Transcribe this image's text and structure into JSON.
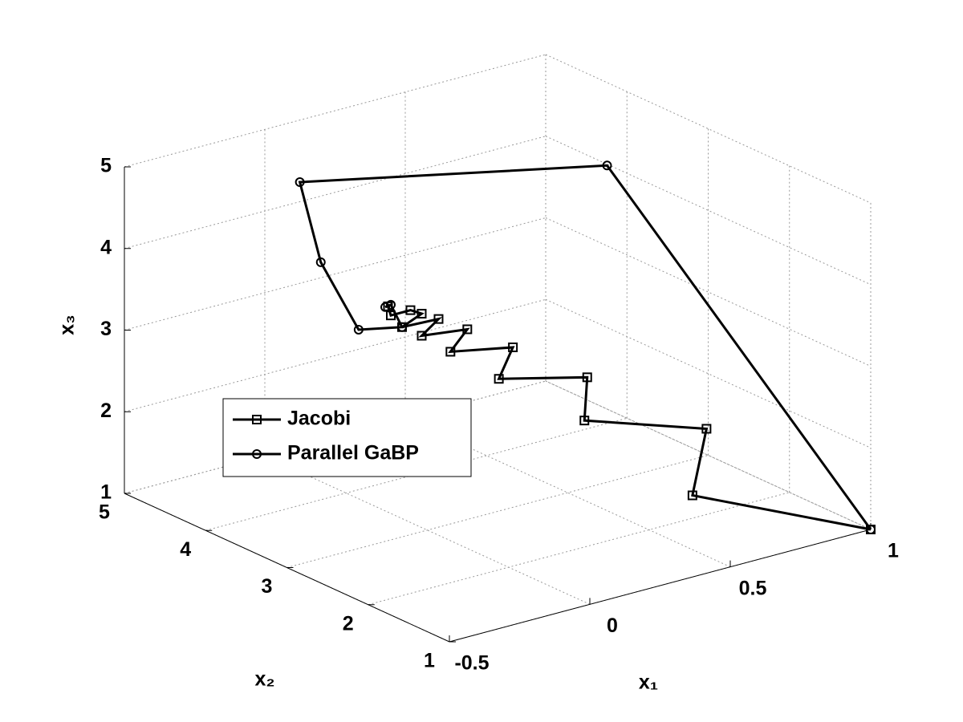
{
  "chart_data": {
    "type": "line3d",
    "xlabel": "x₁",
    "ylabel": "x₂",
    "zlabel": "x₃",
    "xlim": [
      -0.5,
      1
    ],
    "ylim": [
      1,
      5
    ],
    "zlim": [
      1,
      5
    ],
    "xticks": [
      -0.5,
      0,
      0.5,
      1
    ],
    "yticks": [
      1,
      2,
      3,
      4,
      5
    ],
    "zticks": [
      1,
      2,
      3,
      4,
      5
    ],
    "grid": true,
    "series": [
      {
        "name": "Jacobi",
        "color": "#000000",
        "marker": "square",
        "x": [
          1,
          0.51,
          0.56,
          0.27,
          0.28,
          0.11,
          0.16,
          0.01,
          0.07,
          -0.02,
          0.04,
          -0.09,
          -0.02,
          -0.06,
          -0.13,
          -0.14
        ],
        "y": [
          1,
          1.5,
          1.5,
          2,
          2,
          2.5,
          2.5,
          2.75,
          2.75,
          3,
          3,
          3,
          3,
          3,
          3,
          3
        ],
        "z": [
          1,
          1.64,
          2.41,
          2.55,
          3.07,
          2.98,
          3.32,
          3.29,
          3.51,
          3.4,
          3.55,
          3.57,
          3.67,
          3.75,
          3.75,
          3.87
        ]
      },
      {
        "name": "Parallel GaBP",
        "color": "#000000",
        "marker": "circle",
        "x": [
          1,
          0.64,
          -0.02,
          -0.09,
          -0.1,
          -0.09,
          -0.13,
          -0.15
        ],
        "y": [
          1,
          3,
          4.5,
          4,
          3.5,
          3,
          3,
          3
        ],
        "z": [
          1,
          4.88,
          4.6,
          3.91,
          3.32,
          3.57,
          3.88,
          3.87
        ]
      }
    ]
  }
}
